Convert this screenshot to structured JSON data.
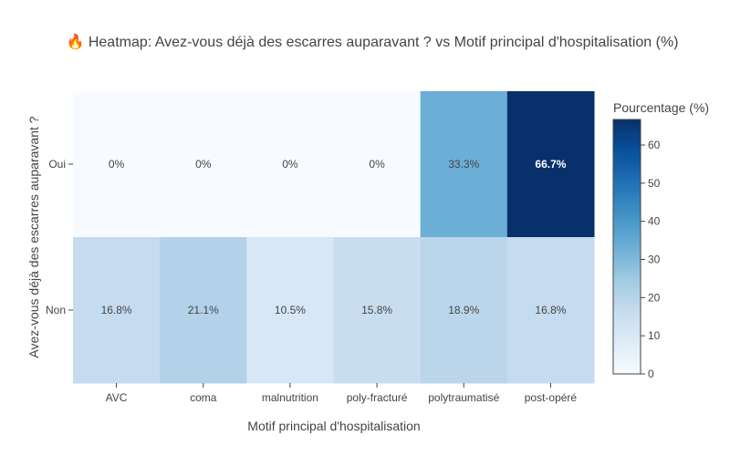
{
  "chart_data": {
    "type": "heatmap",
    "title": "🔥 Heatmap: Avez-vous déjà des escarres auparavant ? vs Motif principal d'hospitalisation (%)",
    "xlabel": "Motif principal d'hospitalisation",
    "ylabel": "Avez-vous déjà des escarres auparavant ?",
    "x_categories": [
      "AVC",
      "coma",
      "malnutrition",
      "poly-fracturé",
      "polytraumatisé",
      "post-opéré"
    ],
    "y_categories": [
      "Oui",
      "Non"
    ],
    "values": [
      [
        0,
        0,
        0,
        0,
        33.3,
        66.7
      ],
      [
        16.8,
        21.1,
        10.5,
        15.8,
        18.9,
        16.8
      ]
    ],
    "cell_labels": [
      [
        "0%",
        "0%",
        "0%",
        "0%",
        "33.3%",
        "66.7%"
      ],
      [
        "16.8%",
        "21.1%",
        "10.5%",
        "15.8%",
        "18.9%",
        "16.8%"
      ]
    ],
    "bold_labels": [
      [
        false,
        false,
        false,
        false,
        false,
        true
      ],
      [
        false,
        false,
        false,
        false,
        false,
        false
      ]
    ],
    "colorscale": "Blues",
    "colorbar": {
      "title": "Pourcentage (%)",
      "range": [
        0,
        66.7
      ],
      "ticks": [
        0,
        10,
        20,
        30,
        40,
        50,
        60
      ]
    }
  }
}
